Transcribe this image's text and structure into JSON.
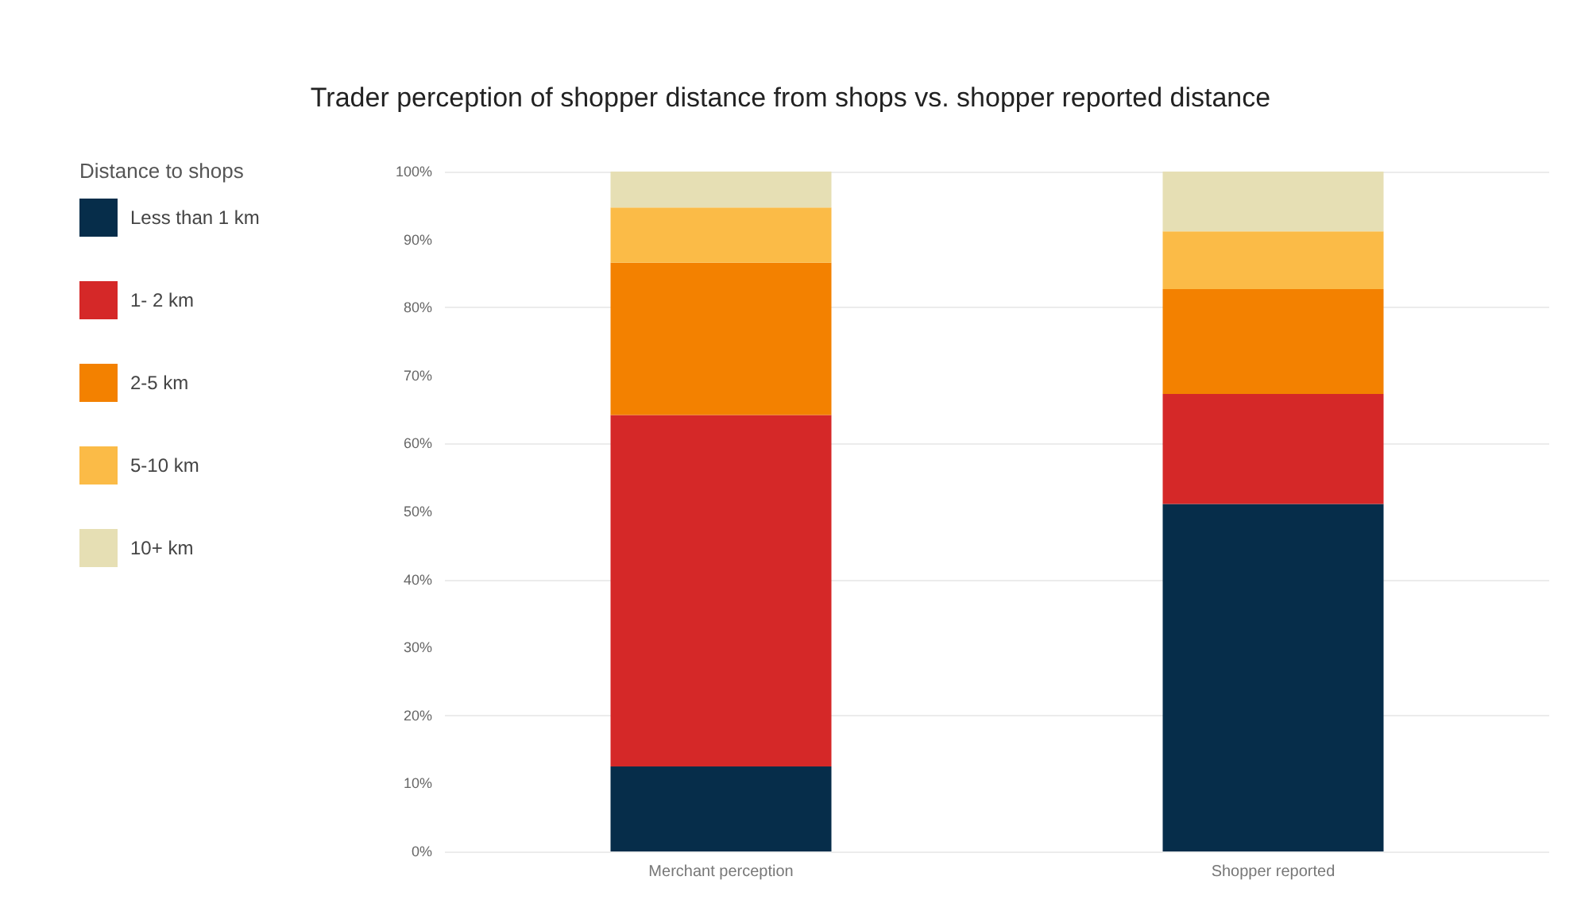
{
  "chart_data": {
    "type": "bar",
    "stacked": true,
    "title": "Trader perception of shopper distance from shops vs. shopper reported distance",
    "legend_title": "Distance to shops",
    "categories": [
      "Merchant perception",
      "Shopper reported"
    ],
    "series": [
      {
        "name": "Less than 1 km",
        "color": "#062d4a",
        "values": [
          12.5,
          51.1
        ]
      },
      {
        "name": "1- 2 km",
        "color": "#d52828",
        "values": [
          51.7,
          16.2
        ]
      },
      {
        "name": "2-5 km",
        "color": "#f38100",
        "values": [
          22.4,
          15.4
        ]
      },
      {
        "name": "5-10 km",
        "color": "#fbbb47",
        "values": [
          8.1,
          8.5
        ]
      },
      {
        "name": "10+ km",
        "color": "#e6dfb4",
        "values": [
          5.3,
          8.8
        ]
      }
    ],
    "ylim": [
      0,
      100
    ],
    "yticks": [
      {
        "value": 0,
        "label": "0%"
      },
      {
        "value": 10,
        "label": "10%"
      },
      {
        "value": 20,
        "label": "20%"
      },
      {
        "value": 30,
        "label": "30%"
      },
      {
        "value": 40,
        "label": "40%"
      },
      {
        "value": 50,
        "label": "50%"
      },
      {
        "value": 60,
        "label": "60%"
      },
      {
        "value": 70,
        "label": "70%"
      },
      {
        "value": 80,
        "label": "80%"
      },
      {
        "value": 90,
        "label": "90%"
      },
      {
        "value": 100,
        "label": "100%"
      }
    ],
    "grid": "y",
    "legend": "left"
  }
}
